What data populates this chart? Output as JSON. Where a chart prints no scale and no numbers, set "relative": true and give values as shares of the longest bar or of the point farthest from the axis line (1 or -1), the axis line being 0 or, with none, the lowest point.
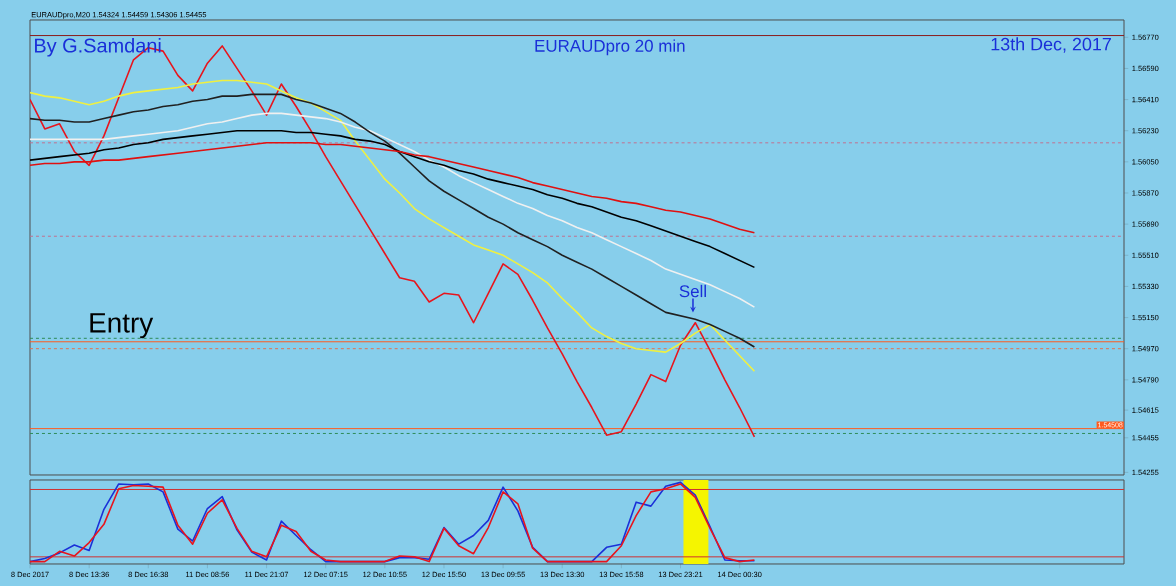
{
  "chart_data": [
    {
      "type": "line",
      "title": "EURAUDpro  20 min",
      "subtitle": "EURAUDpro,M20  1.54324 1.54459 1.54306 1.54455",
      "annotations": [
        "By G.Samdani",
        "13th Dec, 2017",
        "Entry",
        "Sell"
      ],
      "categories": [
        null,
        null,
        null,
        null,
        null,
        null,
        null,
        null,
        null,
        null,
        null,
        null,
        null,
        null,
        null,
        null,
        null,
        null,
        null,
        null,
        null,
        null,
        null,
        null,
        null,
        null,
        null,
        null,
        null,
        null,
        null,
        null,
        null,
        null,
        null,
        null,
        null,
        null,
        null,
        null,
        null,
        null,
        null,
        null,
        null,
        null,
        null,
        null,
        null,
        null,
        null,
        null,
        null,
        null,
        null,
        null,
        null,
        null,
        null,
        null,
        null,
        null,
        null,
        null,
        null,
        null,
        null,
        null,
        null,
        null,
        null,
        null,
        null,
        null,
        null
      ],
      "ylim": [
        1.5424,
        1.5687
      ],
      "tick_labels": "y",
      "yticks": [
        {
          "value": 1.5677,
          "label": "1.56770"
        },
        {
          "value": 1.5659,
          "label": "1.56590"
        },
        {
          "value": 1.5641,
          "label": "1.56410"
        },
        {
          "value": 1.5623,
          "label": "1.56230"
        },
        {
          "value": 1.5605,
          "label": "1.56050"
        },
        {
          "value": 1.5587,
          "label": "1.55870"
        },
        {
          "value": 1.5569,
          "label": "1.55690"
        },
        {
          "value": 1.5551,
          "label": "1.55510"
        },
        {
          "value": 1.5533,
          "label": "1.55330"
        },
        {
          "value": 1.5515,
          "label": "1.55150"
        },
        {
          "value": 1.5497,
          "label": "1.54970"
        },
        {
          "value": 1.5479,
          "label": "1.54790"
        },
        1.54615,
        1.54455,
        1.54255
      ],
      "series": [
        {
          "color": "#e8141c",
          "values": [
            1.5641,
            1.5624,
            1.5627,
            1.5611,
            1.5603,
            1.562,
            1.5642,
            1.5664,
            1.5671,
            1.5669,
            1.5655,
            1.5646,
            1.5662,
            1.5672,
            1.5659,
            1.5646,
            1.5632,
            1.565,
            1.5637,
            1.5623,
            1.5608,
            1.5594,
            1.558,
            1.5566,
            1.5552,
            1.5538,
            1.5536,
            1.5524,
            1.5529,
            1.5528,
            1.5512,
            1.5529,
            1.5546,
            1.554,
            1.5525,
            1.5509,
            1.5494,
            1.5478,
            1.5463,
            1.5447,
            1.5449,
            1.5465,
            1.5482,
            1.5478,
            1.5499,
            1.5512,
            1.5496,
            1.5479,
            1.5463,
            1.5446,
            null,
            null,
            null,
            null,
            null,
            null,
            null,
            null,
            null,
            null,
            null,
            null,
            null,
            null,
            null,
            null,
            null,
            null,
            null,
            null,
            null,
            null,
            null,
            null,
            null
          ]
        },
        {
          "color": "#f0f040",
          "values": [
            1.5645,
            1.5643,
            1.5642,
            1.564,
            1.5638,
            1.564,
            1.5643,
            1.5645,
            1.5646,
            1.5647,
            1.5648,
            1.565,
            1.5651,
            1.5652,
            1.5652,
            1.5651,
            1.565,
            1.5646,
            1.5642,
            1.5639,
            1.5634,
            1.5629,
            1.5617,
            1.5606,
            1.5595,
            1.5587,
            1.5578,
            1.5572,
            1.5567,
            1.5562,
            1.5557,
            1.5554,
            1.5551,
            1.5546,
            1.5541,
            1.5535,
            1.5526,
            1.5518,
            1.5509,
            1.5504,
            1.55,
            1.5497,
            1.5496,
            1.5495,
            1.55,
            1.5506,
            1.5511,
            1.5502,
            1.5493,
            1.5484,
            null,
            null,
            null,
            null,
            null,
            null,
            null,
            null,
            null,
            null,
            null,
            null,
            null,
            null,
            null,
            null,
            null,
            null,
            null,
            null,
            null,
            null,
            null,
            null,
            null
          ]
        },
        {
          "color": "#f0f0f0",
          "values": [
            1.5618,
            1.5618,
            1.5618,
            1.5618,
            1.5618,
            1.5618,
            1.5619,
            1.562,
            1.5621,
            1.5622,
            1.5623,
            1.5625,
            1.5627,
            1.5628,
            1.563,
            1.5632,
            1.5633,
            1.5633,
            1.5632,
            1.5631,
            1.563,
            1.5628,
            1.5625,
            1.5623,
            1.5619,
            1.5615,
            1.5611,
            1.5606,
            1.5602,
            1.5597,
            1.5593,
            1.5589,
            1.5585,
            1.5581,
            1.5578,
            1.5574,
            1.5571,
            1.5567,
            1.5564,
            1.556,
            1.5556,
            1.5552,
            1.5548,
            1.5543,
            1.554,
            1.5537,
            1.5534,
            1.553,
            1.5526,
            1.5521,
            null,
            null,
            null,
            null,
            null,
            null,
            null,
            null,
            null,
            null,
            null,
            null,
            null,
            null,
            null,
            null,
            null,
            null,
            null,
            null,
            null,
            null,
            null,
            null,
            null
          ]
        },
        {
          "color": "#202020",
          "values": [
            1.563,
            1.5629,
            1.5629,
            1.5628,
            1.5628,
            1.563,
            1.5632,
            1.5634,
            1.5635,
            1.5637,
            1.5638,
            1.564,
            1.5641,
            1.5643,
            1.5643,
            1.5644,
            1.5644,
            1.5644,
            1.5641,
            1.5639,
            1.5636,
            1.5633,
            1.5628,
            1.5622,
            1.5617,
            1.561,
            1.5602,
            1.5594,
            1.5588,
            1.5583,
            1.5578,
            1.5573,
            1.5569,
            1.5564,
            1.556,
            1.5556,
            1.5551,
            1.5547,
            1.5543,
            1.5538,
            1.5533,
            1.5528,
            1.5523,
            1.5518,
            1.5516,
            1.5514,
            1.5511,
            1.5507,
            1.5503,
            1.5498,
            null,
            null,
            null,
            null,
            null,
            null,
            null,
            null,
            null,
            null,
            null,
            null,
            null,
            null,
            null,
            null,
            null,
            null,
            null,
            null,
            null,
            null,
            null,
            null,
            null
          ]
        },
        {
          "color": "#000000",
          "values": [
            1.5606,
            1.5607,
            1.5608,
            1.5609,
            1.561,
            1.5612,
            1.5613,
            1.5615,
            1.5616,
            1.5618,
            1.5619,
            1.562,
            1.5621,
            1.5622,
            1.5623,
            1.5623,
            1.5623,
            1.5623,
            1.5622,
            1.5622,
            1.5621,
            1.562,
            1.5618,
            1.5617,
            1.5615,
            1.5611,
            1.5608,
            1.5605,
            1.5603,
            1.56,
            1.5598,
            1.5595,
            1.5593,
            1.5591,
            1.5589,
            1.5586,
            1.5584,
            1.5581,
            1.5579,
            1.5576,
            1.5573,
            1.5571,
            1.5568,
            1.5565,
            1.5562,
            1.5559,
            1.5556,
            1.5552,
            1.5548,
            1.5544,
            null,
            null,
            null,
            null,
            null,
            null,
            null,
            null,
            null,
            null,
            null,
            null,
            null,
            null,
            null,
            null,
            null,
            null,
            null,
            null,
            null,
            null,
            null,
            null,
            null
          ]
        },
        {
          "color": "#e01010",
          "values": [
            1.5603,
            1.5604,
            1.5604,
            1.5605,
            1.5605,
            1.5606,
            1.5606,
            1.5607,
            1.5608,
            1.5609,
            1.561,
            1.5611,
            1.5612,
            1.5613,
            1.5614,
            1.5615,
            1.5616,
            1.5616,
            1.5616,
            1.5616,
            1.5615,
            1.5615,
            1.5614,
            1.5613,
            1.5612,
            1.5611,
            1.5609,
            1.5608,
            1.5606,
            1.5604,
            1.5602,
            1.56,
            1.5598,
            1.5596,
            1.5593,
            1.5591,
            1.5589,
            1.5587,
            1.5585,
            1.5584,
            1.5582,
            1.5581,
            1.5579,
            1.5577,
            1.5576,
            1.5574,
            1.5572,
            1.5569,
            1.5566,
            1.5564,
            null,
            null,
            null,
            null,
            null,
            null,
            null,
            null,
            null,
            null,
            null,
            null,
            null,
            null,
            null,
            null,
            null,
            null,
            null,
            null,
            null,
            null,
            null,
            null,
            null
          ]
        }
      ],
      "ref_lines": [
        {
          "axis": "y",
          "value": 1.5678,
          "color": "#8b1a1a"
        },
        {
          "axis": "y",
          "value": 1.5616,
          "color": "#c07090",
          "line_style": "dashed"
        },
        {
          "axis": "y",
          "value": 1.5562,
          "color": "#c07090",
          "line_style": "dashed"
        },
        {
          "axis": "y",
          "value": 1.5503,
          "color": "#2e8b57",
          "line_style": "dashed"
        },
        {
          "axis": "y",
          "value": 1.5501,
          "color": "#ff5a1e"
        },
        {
          "axis": "y",
          "value": 1.5497,
          "color": "#e07050",
          "line_style": "dashed"
        },
        {
          "axis": "y",
          "value": 1.54508,
          "color": "#ff5a1e",
          "label": "1.54508"
        },
        {
          "axis": "y",
          "value": 1.5448,
          "color": "#2e8b57",
          "line_style": "dashed"
        }
      ]
    },
    {
      "type": "line",
      "relative": true,
      "tick_labels": "x",
      "categories": [
        "8 Dec 2017",
        null,
        null,
        null,
        "8 Dec 13:36",
        null,
        null,
        null,
        "8 Dec 16:38",
        null,
        null,
        null,
        "11 Dec 08:56",
        null,
        null,
        null,
        "11 Dec 21:07",
        null,
        null,
        null,
        "12 Dec 07:15",
        null,
        null,
        null,
        "12 Dec 10:55",
        null,
        null,
        null,
        "12 Dec 15:50",
        null,
        null,
        null,
        "13 Dec 09:55",
        null,
        null,
        null,
        "13 Dec 13:30",
        null,
        null,
        null,
        "13 Dec 15:58",
        null,
        null,
        null,
        "13 Dec 23:21",
        null,
        null,
        null,
        "14 Dec 00:30",
        null,
        null,
        null,
        null,
        null,
        null,
        null,
        null,
        null,
        null,
        null,
        null,
        null,
        null,
        null,
        null,
        null,
        null,
        null,
        null,
        null,
        null,
        null,
        null,
        null,
        null
      ],
      "series": [
        {
          "color": "#1a2fd8",
          "values": [
            0,
            0.04,
            0.11,
            0.21,
            0.14,
            0.66,
            0.98,
            0.97,
            0.98,
            0.88,
            0.41,
            0.26,
            0.67,
            0.82,
            0.4,
            0.12,
            0.02,
            0.51,
            0.33,
            0.15,
            0,
            0,
            0,
            0,
            0,
            0.05,
            0.05,
            0.03,
            0.43,
            0.22,
            0.33,
            0.52,
            0.94,
            0.64,
            0.18,
            0,
            0,
            0,
            0,
            0.18,
            0.22,
            0.75,
            0.7,
            0.95,
            1,
            0.84,
            0.44,
            0.02,
            0.01,
            0.01,
            null,
            null,
            null,
            null,
            null,
            null,
            null,
            null,
            null,
            null,
            null,
            null,
            null,
            null,
            null,
            null,
            null,
            null,
            null,
            null,
            null,
            null,
            null,
            null,
            null
          ]
        },
        {
          "color": "#e8141c",
          "values": [
            0,
            0,
            0.13,
            0.07,
            0.24,
            0.47,
            0.92,
            0.96,
            0.95,
            0.94,
            0.46,
            0.22,
            0.61,
            0.78,
            0.42,
            0.13,
            0.06,
            0.46,
            0.38,
            0.13,
            0.02,
            0,
            0,
            0,
            0,
            0.07,
            0.06,
            0,
            0.42,
            0.2,
            0.1,
            0.43,
            0.88,
            0.73,
            0.17,
            0,
            0,
            0,
            0,
            0,
            0.2,
            0.58,
            0.88,
            0.92,
            0.98,
            0.81,
            0.42,
            0.05,
            0,
            0.02,
            null,
            null,
            null,
            null,
            null,
            null,
            null,
            null,
            null,
            null,
            null,
            null,
            null,
            null,
            null,
            null,
            null,
            null,
            null,
            null,
            null,
            null,
            null,
            null,
            null
          ]
        }
      ],
      "ref_lines": [
        {
          "axis": "y",
          "value": 0.91,
          "color": "#d03030"
        },
        {
          "axis": "y",
          "value": 0.06,
          "color": "#d03030"
        }
      ]
    }
  ]
}
